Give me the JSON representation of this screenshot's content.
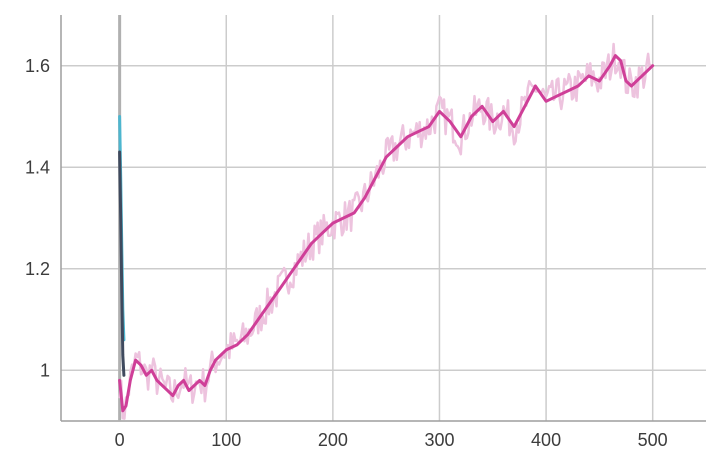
{
  "chart_data": {
    "type": "line",
    "title": "",
    "xlabel": "",
    "ylabel": "",
    "xlim": [
      -55,
      550
    ],
    "ylim": [
      0.9,
      1.7
    ],
    "grid": true,
    "legend": "none",
    "x_ticks": [
      {
        "value": 0,
        "label": "0"
      },
      {
        "value": 100,
        "label": "100"
      },
      {
        "value": 200,
        "label": "200"
      },
      {
        "value": 300,
        "label": "300"
      },
      {
        "value": 400,
        "label": "400"
      },
      {
        "value": 500,
        "label": "500"
      }
    ],
    "y_ticks": [
      {
        "value": 1.0,
        "label": "1"
      },
      {
        "value": 1.2,
        "label": "1.2"
      },
      {
        "value": 1.4,
        "label": "1.4"
      },
      {
        "value": 1.6,
        "label": "1.6"
      }
    ],
    "series": [
      {
        "color": "#4db6cf",
        "x": [
          0,
          1,
          2,
          3,
          4
        ],
        "y": [
          1.5,
          1.38,
          1.24,
          1.12,
          1.06
        ]
      },
      {
        "color": "#3f4a5e",
        "x": [
          0,
          1,
          2,
          3,
          4
        ],
        "y": [
          1.43,
          1.3,
          1.15,
          1.03,
          0.99
        ]
      },
      {
        "color": "#cf3f98",
        "raw_color": "#edc3de",
        "x": [
          0,
          3,
          6,
          10,
          15,
          20,
          25,
          30,
          35,
          40,
          45,
          50,
          55,
          60,
          65,
          70,
          75,
          80,
          85,
          90,
          95,
          100,
          110,
          120,
          130,
          140,
          150,
          160,
          170,
          180,
          190,
          200,
          210,
          220,
          230,
          240,
          250,
          260,
          270,
          280,
          290,
          300,
          310,
          320,
          330,
          340,
          350,
          360,
          370,
          380,
          390,
          400,
          410,
          420,
          430,
          440,
          450,
          460,
          465,
          470,
          475,
          480,
          490,
          500
        ],
        "y": [
          0.98,
          0.92,
          0.93,
          0.98,
          1.02,
          1.01,
          0.99,
          1.0,
          0.98,
          0.97,
          0.96,
          0.95,
          0.97,
          0.98,
          0.96,
          0.97,
          0.98,
          0.97,
          1.0,
          1.02,
          1.03,
          1.04,
          1.05,
          1.07,
          1.1,
          1.13,
          1.16,
          1.19,
          1.22,
          1.25,
          1.27,
          1.29,
          1.3,
          1.31,
          1.34,
          1.38,
          1.42,
          1.44,
          1.46,
          1.47,
          1.48,
          1.51,
          1.49,
          1.46,
          1.5,
          1.52,
          1.49,
          1.51,
          1.48,
          1.52,
          1.56,
          1.53,
          1.54,
          1.55,
          1.56,
          1.58,
          1.57,
          1.6,
          1.62,
          1.61,
          1.57,
          1.56,
          1.58,
          1.6
        ]
      }
    ]
  }
}
